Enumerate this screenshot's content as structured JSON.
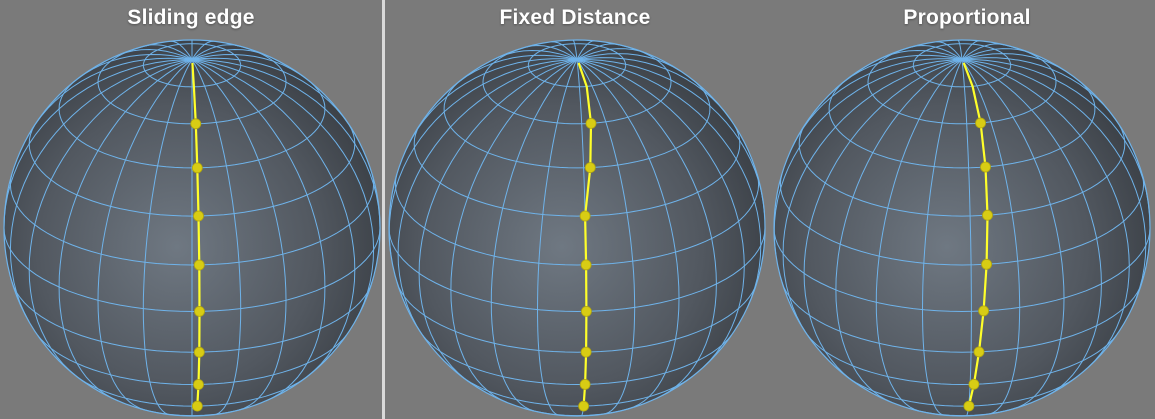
{
  "background_color": "#7a7a7a",
  "divider_color": "#d9d9d9",
  "wire_color": "#6fb3ea",
  "highlight_color": "#ffff2a",
  "point_color": "#d8cc14",
  "sphere_shading": {
    "light": "#6f7882",
    "mid": "#525860",
    "dark": "#353a40"
  },
  "panels": [
    {
      "title": "Sliding edge",
      "edge_mode": "sliding-edge"
    },
    {
      "title": "Fixed Distance",
      "edge_mode": "fixed-distance"
    },
    {
      "title": "Proportional",
      "edge_mode": "proportional"
    }
  ]
}
